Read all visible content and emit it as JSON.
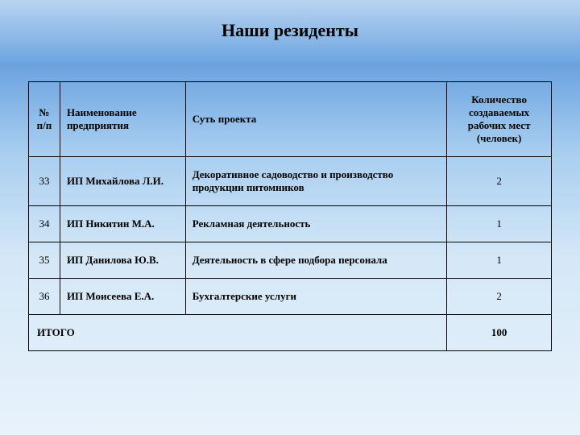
{
  "title": "Наши резиденты",
  "table": {
    "columns": [
      {
        "key": "num",
        "label": "№ п/п",
        "class": "col-num"
      },
      {
        "key": "name",
        "label": "Наименование предприятия",
        "class": "col-name"
      },
      {
        "key": "desc",
        "label": "Суть проекта",
        "class": "col-desc"
      },
      {
        "key": "count",
        "label": "Количество создаваемых рабочих мест (человек)",
        "class": "col-count"
      }
    ],
    "rows": [
      {
        "num": "33",
        "name": "ИП Михайлова Л.И.",
        "desc": "Декоративное садоводство и производство продукции питомников",
        "count": "2"
      },
      {
        "num": "34",
        "name": "ИП Никитин М.А.",
        "desc": "Рекламная деятельность",
        "count": "1"
      },
      {
        "num": "35",
        "name": "ИП Данилова Ю.В.",
        "desc": "Деятельность в сфере подбора персонала",
        "count": "1"
      },
      {
        "num": "36",
        "name": "ИП Моисеева Е.А.",
        "desc": "Бухгалтерские услуги",
        "count": "2"
      }
    ],
    "total": {
      "label": "ИТОГО",
      "value": "100"
    }
  },
  "style": {
    "background_gradient": [
      "#b8d4f0",
      "#6ba3e0",
      "#a8cef0",
      "#d5e8f7",
      "#e8f2fb"
    ],
    "border_color": "#000000",
    "text_color": "#000000",
    "title_fontsize": 22,
    "cell_fontsize": 13,
    "font_family": "Times New Roman"
  }
}
